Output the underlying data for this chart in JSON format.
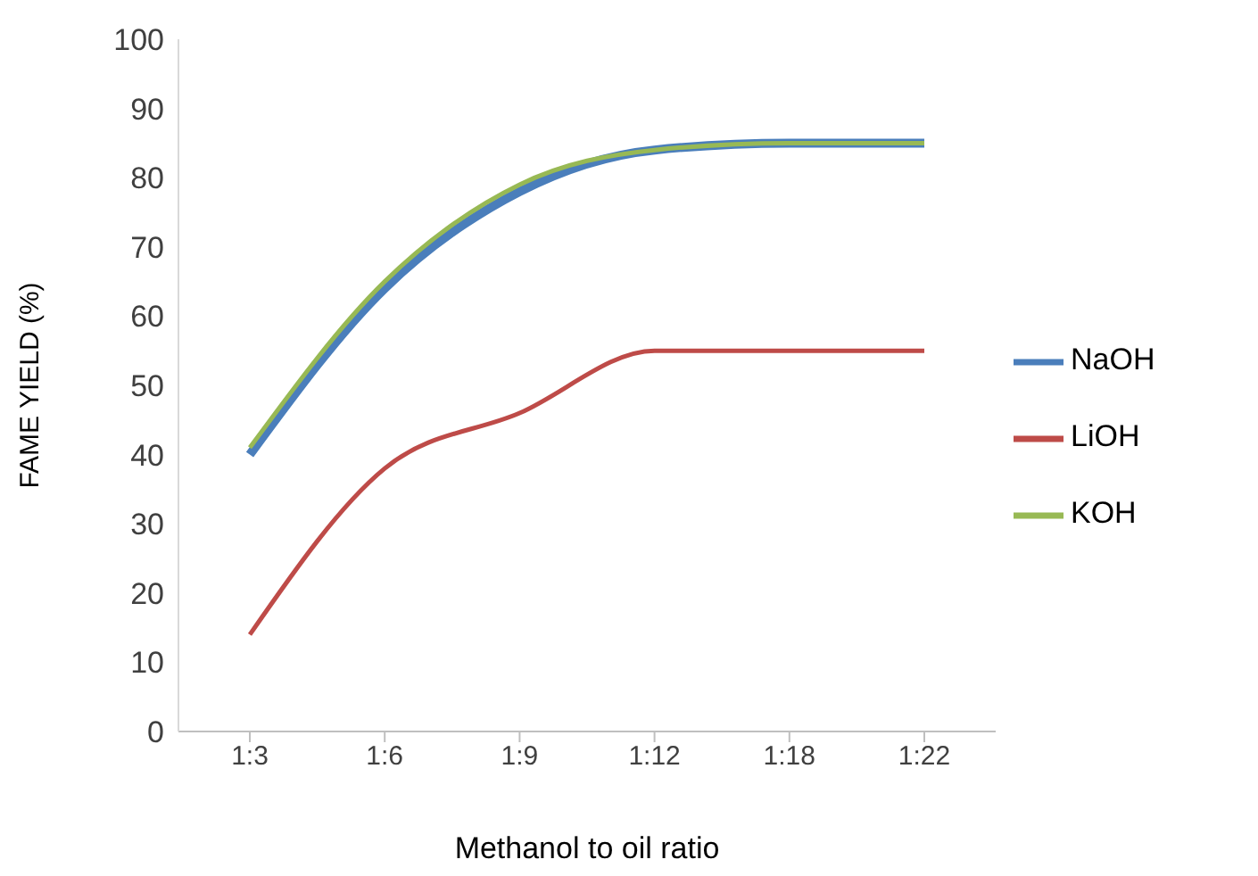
{
  "chart_data": {
    "type": "line",
    "xlabel": "Methanol  to oil  ratio",
    "ylabel": "FAME YIELD (%)",
    "categories": [
      "1:3",
      "1:6",
      "1:9",
      "1:12",
      "1:18",
      "1:22"
    ],
    "series": [
      {
        "name": "NaOH",
        "color": "#4a7ebb",
        "values": [
          40,
          64,
          78,
          84,
          85,
          85
        ]
      },
      {
        "name": "LiOH",
        "color": "#be4b48",
        "values": [
          14,
          38,
          46,
          55,
          55,
          55
        ]
      },
      {
        "name": "KOH",
        "color": "#98b954",
        "values": [
          41,
          65,
          79,
          84,
          85,
          85
        ]
      }
    ],
    "ylim": [
      0,
      100
    ],
    "yticks": [
      0,
      10,
      20,
      30,
      40,
      50,
      60,
      70,
      80,
      90,
      100
    ],
    "legend": "right"
  }
}
